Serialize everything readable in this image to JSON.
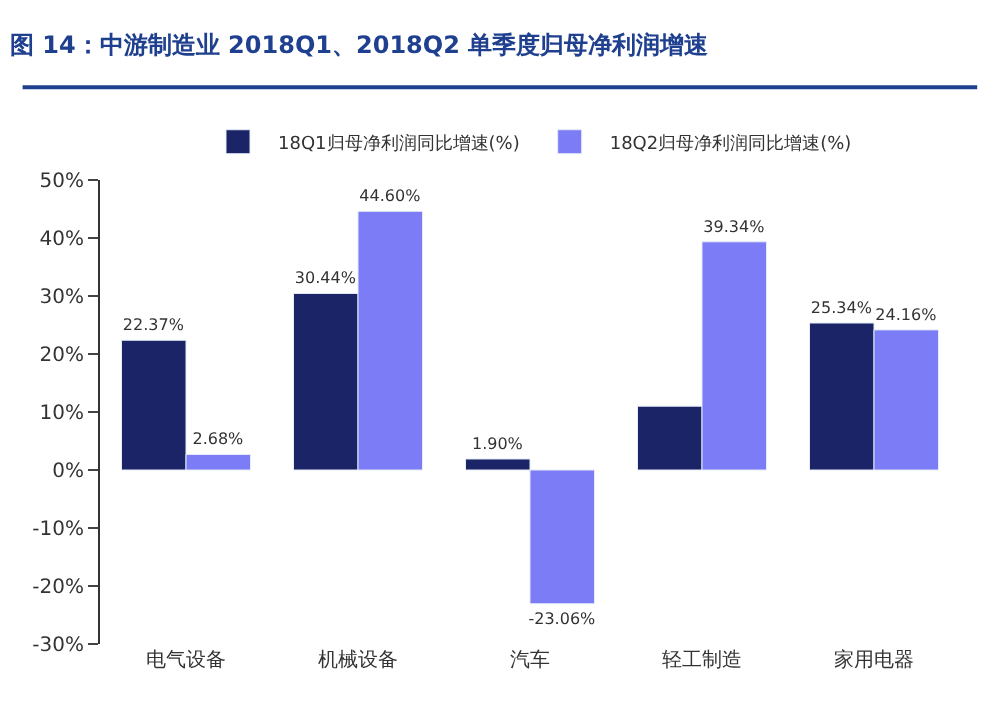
{
  "chart_data": {
    "type": "bar",
    "title": "图 14：中游制造业 2018Q1、2018Q2 单季度归母净利润增速",
    "categories": [
      "电气设备",
      "机械设备",
      "汽车",
      "轻工制造",
      "家用电器"
    ],
    "series": [
      {
        "name": "18Q1归母净利润同比增速(%)",
        "color": "#1c2468",
        "values": [
          22.37,
          30.44,
          1.9,
          11,
          25.34
        ],
        "value_labels": [
          "22.37%",
          "30.44%",
          "1.90%",
          null,
          "25.34%"
        ]
      },
      {
        "name": "18Q2归母净利润同比增速(%)",
        "color": "#7b7cf6",
        "values": [
          2.68,
          44.6,
          -23.06,
          39.34,
          24.16
        ],
        "value_labels": [
          "2.68%",
          "44.60%",
          "-23.06%",
          "39.34%",
          "24.16%"
        ]
      }
    ],
    "ylim": [
      -30,
      50
    ],
    "yticks": [
      {
        "value": -30,
        "label": "-30%"
      },
      {
        "value": -20,
        "label": "-20%"
      },
      {
        "value": -10,
        "label": "-10%"
      },
      {
        "value": 0,
        "label": "0%"
      },
      {
        "value": 10,
        "label": "10%"
      },
      {
        "value": 20,
        "label": "20%"
      },
      {
        "value": 30,
        "label": "30%"
      },
      {
        "value": 40,
        "label": "40%"
      },
      {
        "value": 50,
        "label": "50%"
      }
    ],
    "legend": "top"
  }
}
